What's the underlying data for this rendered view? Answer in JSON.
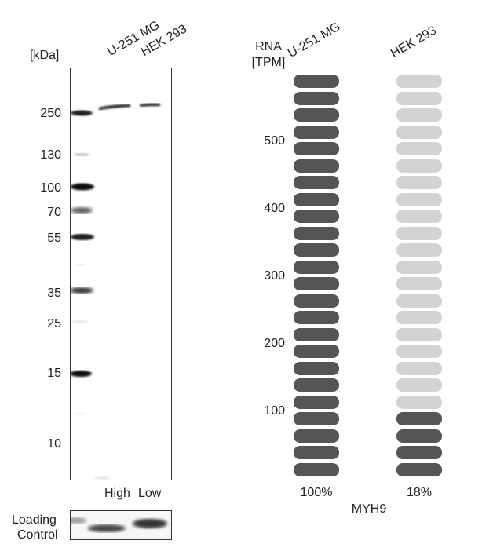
{
  "western_blot": {
    "unit_label": "[kDa]",
    "lanes": [
      "U-251 MG",
      "HEK 293"
    ],
    "markers": [
      "250",
      "130",
      "100",
      "70",
      "55",
      "35",
      "25",
      "15",
      "10"
    ],
    "bottom_labels": [
      "High",
      "Low"
    ],
    "loading_control_label_1": "Loading",
    "loading_control_label_2": "Control"
  },
  "rna": {
    "header_line1": "RNA",
    "header_line2": "[TPM]",
    "cell_lines": [
      "U-251 MG",
      "HEK 293"
    ],
    "y_ticks": [
      "500",
      "400",
      "300",
      "200",
      "100"
    ],
    "percentages": [
      "100%",
      "18%"
    ],
    "gene": "MYH9",
    "total_segments": 24,
    "filled_segments": [
      24,
      4
    ],
    "colors": {
      "filled": "#555555",
      "empty": "#d3d3d3"
    }
  }
}
